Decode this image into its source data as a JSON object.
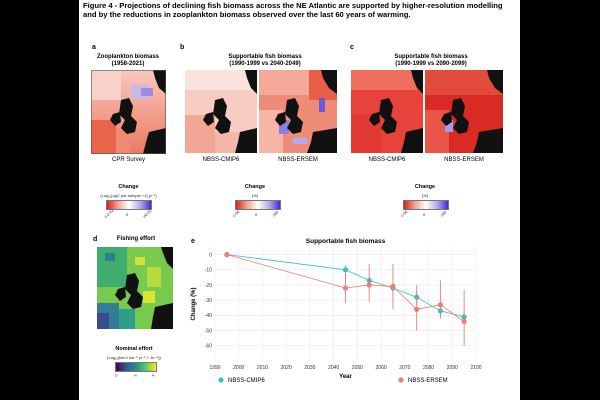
{
  "caption": "Figure 4 - Projections of declining fish biomass across the NE Atlantic are supported by higher-resolution modelling and by the reductions in zooplankton biomass observed over the last 60 years of warming.",
  "panel_a": {
    "label": "a",
    "title_line1": "Zooplankton biomass",
    "title_line2": "(1958-2021)",
    "map_label": "CPR Survey",
    "legend_title": "Change",
    "legend_units": "(Log₁₀[ugC per sample +1] yr⁻¹)",
    "ticks": [
      "≤-0.02",
      "0",
      "≥0.02"
    ]
  },
  "panel_b": {
    "label": "b",
    "title_line1": "Supportable fish biomass",
    "title_line2": "(1990-1999 vs 2040-2049)",
    "map_label_left": "NBSS-CMIP6",
    "map_label_right": "NBSS-ERSEM",
    "legend_title": "Change",
    "legend_units": "(%)",
    "ticks": [
      "≤-50",
      "0",
      "≥50"
    ]
  },
  "panel_c": {
    "label": "c",
    "title_line1": "Supportable fish biomass",
    "title_line2": "(1990-1999 vs 2090-2099)",
    "map_label_left": "NBSS-CMIP6",
    "map_label_right": "NBSS-ERSEM",
    "legend_title": "Change",
    "legend_units": "(%)",
    "ticks": [
      "≤-50",
      "0",
      "≥50"
    ]
  },
  "panel_d": {
    "label": "d",
    "title": "Fishing effort",
    "legend_title": "Nominal effort",
    "legend_units": "(Log₁₀[kw-h km⁻² yr⁻¹ + 1e⁻⁴])",
    "ticks": [
      "0",
      "2",
      "4"
    ]
  },
  "panel_e": {
    "label": "e",
    "title": "Supportable fish biomass",
    "colors": {
      "cmip6": "#2ec4c4",
      "ersem": "#f07c72"
    },
    "legend_cmip6": "NBSS-CMIP6",
    "legend_ersem": "NBSS-ERSEM"
  },
  "chart_data": {
    "type": "scatter",
    "title": "Supportable fish biomass",
    "xlabel": "Year",
    "ylabel": "Change (%)",
    "xlim": [
      1990,
      2100
    ],
    "ylim": [
      -70,
      5
    ],
    "xticks": [
      1990,
      2000,
      2010,
      2020,
      2030,
      2040,
      2050,
      2060,
      2070,
      2080,
      2090,
      2100
    ],
    "yticks": [
      0,
      -10,
      -20,
      -30,
      -40,
      -50,
      -60
    ],
    "series": [
      {
        "name": "NBSS-CMIP6",
        "color": "#2ec4c4",
        "x": [
          1995,
          2045,
          2055,
          2065,
          2075,
          2085,
          2095
        ],
        "y": [
          0,
          -10,
          -17,
          -22,
          -28,
          -37,
          -41
        ],
        "lower": [
          0,
          -17,
          -23,
          -27,
          -33,
          -41,
          -46
        ],
        "upper": [
          0,
          -7,
          -14,
          -18,
          -24,
          -33,
          -37
        ]
      },
      {
        "name": "NBSS-ERSEM",
        "color": "#f07c72",
        "x": [
          1995,
          2045,
          2055,
          2065,
          2075,
          2085,
          2095
        ],
        "y": [
          0,
          -22,
          -20,
          -21,
          -36,
          -33,
          -44
        ],
        "lower": [
          0,
          -32,
          -31,
          -36,
          -50,
          -42,
          -60
        ],
        "upper": [
          0,
          -11,
          -6,
          -6,
          -20,
          -17,
          -23
        ]
      }
    ]
  }
}
